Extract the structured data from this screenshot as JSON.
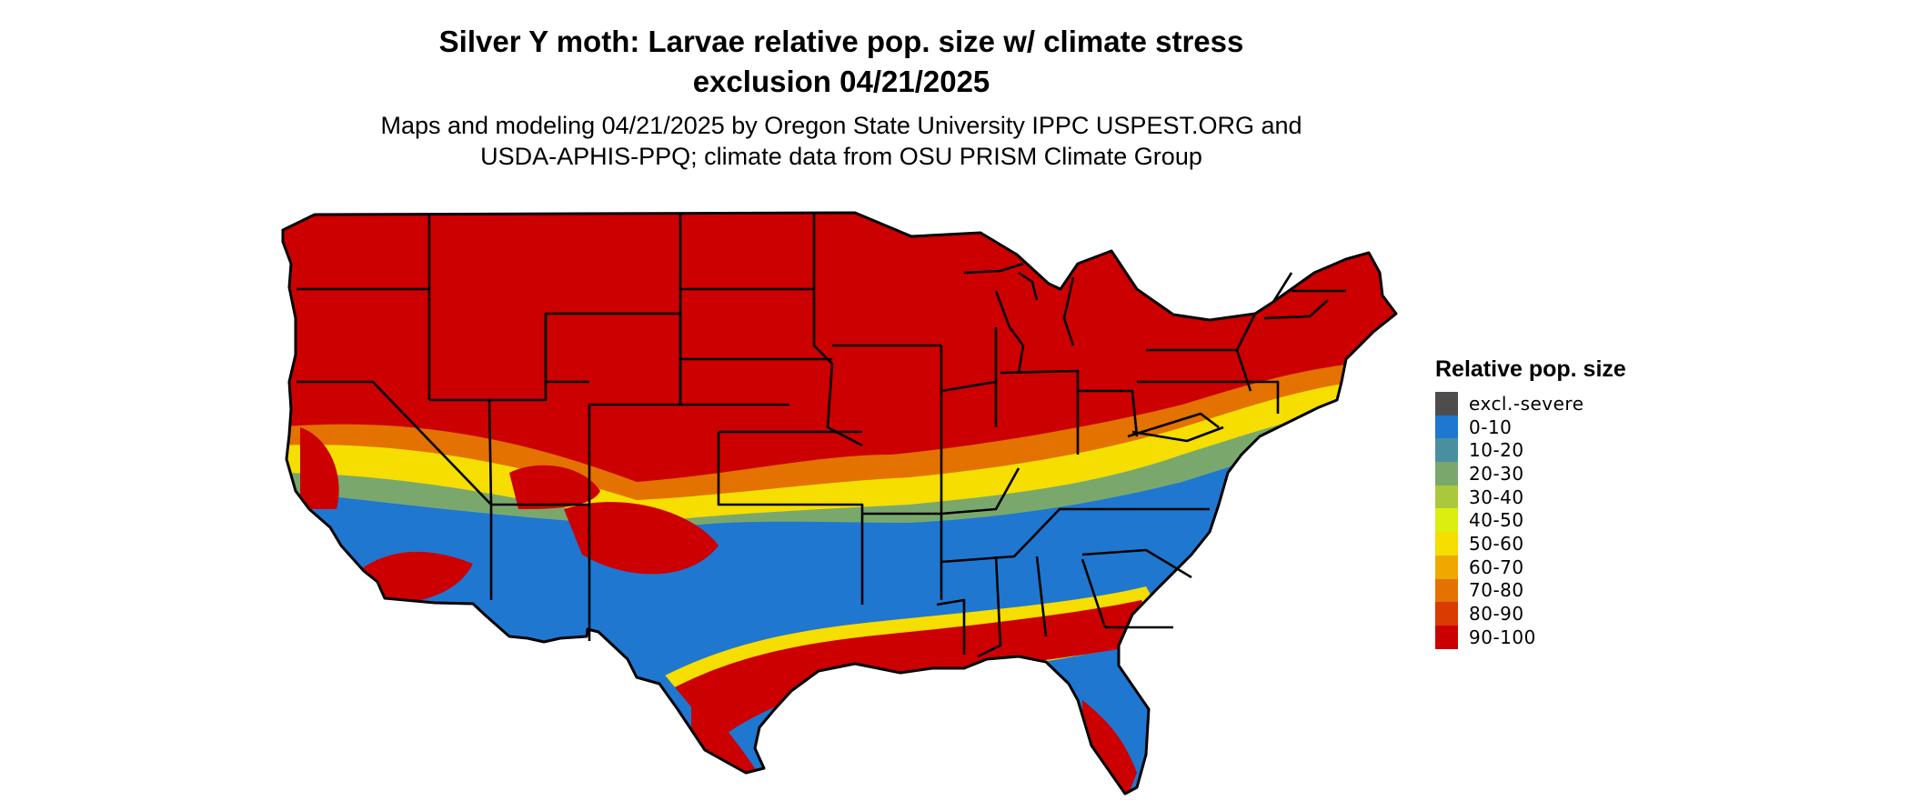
{
  "title": {
    "line1": "Silver Y moth: Larvae relative pop. size w/ climate stress",
    "line2": "exclusion 04/21/2025"
  },
  "subtitle": {
    "line1": "Maps and modeling 04/21/2025 by Oregon State University IPPC USPEST.ORG and",
    "line2": "USDA-APHIS-PPQ; climate data from OSU PRISM Climate Group"
  },
  "legend": {
    "title": "Relative pop. size",
    "items": [
      {
        "label": "excl.-severe",
        "color": "#4d4d4d"
      },
      {
        "label": "0-10",
        "color": "#1f77d0"
      },
      {
        "label": "10-20",
        "color": "#4a8fa0"
      },
      {
        "label": "20-30",
        "color": "#7aa86c"
      },
      {
        "label": "30-40",
        "color": "#a9c83c"
      },
      {
        "label": "40-50",
        "color": "#dcee10"
      },
      {
        "label": "50-60",
        "color": "#f5de00"
      },
      {
        "label": "60-70",
        "color": "#eea800"
      },
      {
        "label": "70-80",
        "color": "#e37200"
      },
      {
        "label": "80-90",
        "color": "#d93b00"
      },
      {
        "label": "90-100",
        "color": "#cc0000"
      }
    ]
  },
  "map": {
    "region": "conterminous-united-states",
    "colors": {
      "outline": "#000000",
      "hot": "#cc0000",
      "orange": "#e37200",
      "amber": "#eea800",
      "yellow": "#f5de00",
      "lime": "#a9c83c",
      "green": "#7aa86c",
      "blue": "#1f77d0"
    }
  }
}
